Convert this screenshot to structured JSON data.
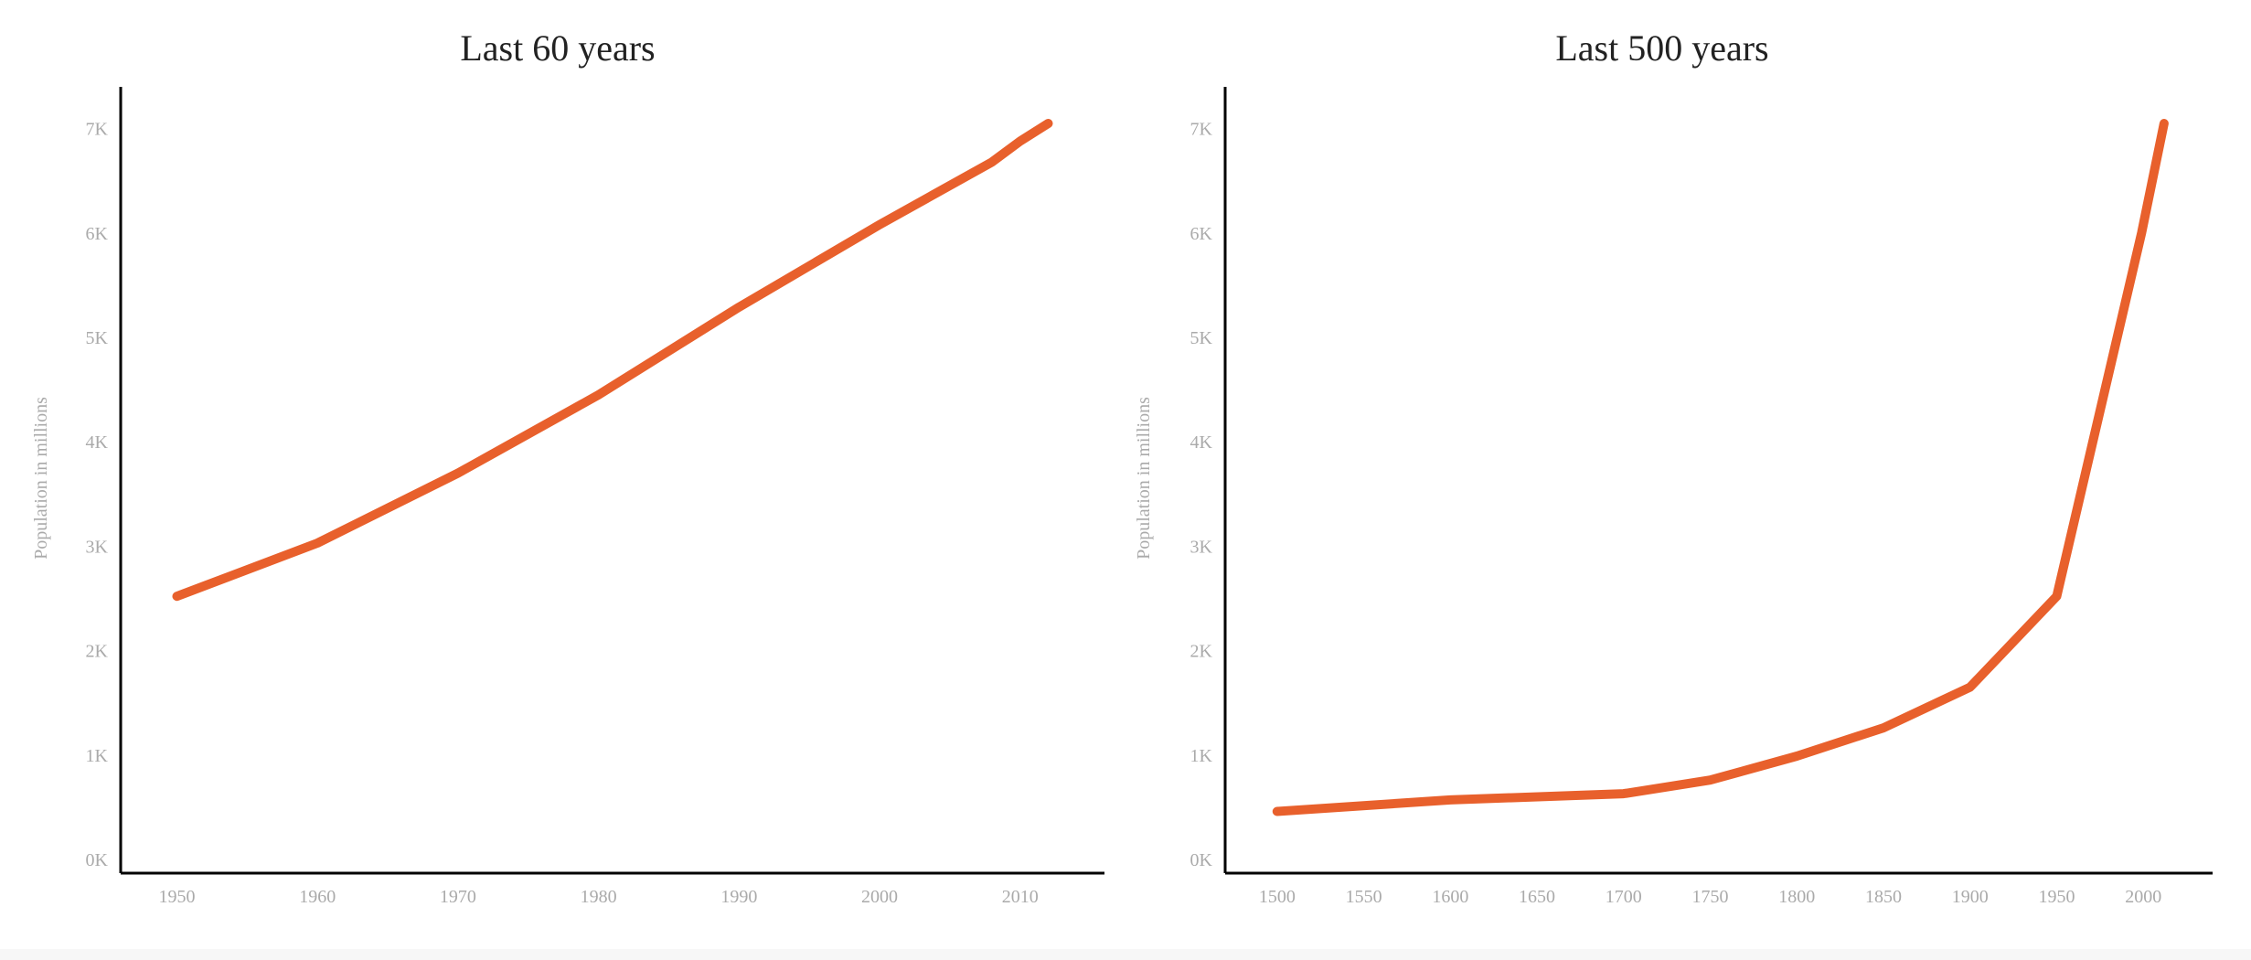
{
  "colors": {
    "line": "#E8602C",
    "axis": "#000000",
    "tick": "#aaaaaa",
    "title": "#222222"
  },
  "chart_data": [
    {
      "type": "line",
      "title": "Last 60 years",
      "ylabel": "Population in millions",
      "xlabel": "",
      "ylim": [
        0,
        7400
      ],
      "xlim": [
        1946,
        2016
      ],
      "yticks": [
        0,
        1000,
        2000,
        3000,
        4000,
        5000,
        6000,
        7000
      ],
      "yticklabels": [
        "0K",
        "1K",
        "2K",
        "3K",
        "4K",
        "5K",
        "6K",
        "7K"
      ],
      "xticks": [
        1950,
        1960,
        1970,
        1980,
        1990,
        2000,
        2010
      ],
      "xticklabels": [
        "1950",
        "1960",
        "1970",
        "1980",
        "1990",
        "2000",
        "2010"
      ],
      "grid": false,
      "series": [
        {
          "x": [
            1950,
            1960,
            1970,
            1980,
            1990,
            2000,
            2008,
            2010,
            2012
          ],
          "values": [
            2520,
            3030,
            3700,
            4450,
            5290,
            6080,
            6680,
            6880,
            7050
          ]
        }
      ]
    },
    {
      "type": "line",
      "title": "Last 500 years",
      "ylabel": "Population in millions",
      "xlabel": "",
      "ylim": [
        0,
        7400
      ],
      "xlim": [
        1470,
        2040
      ],
      "yticks": [
        0,
        1000,
        2000,
        3000,
        4000,
        5000,
        6000,
        7000
      ],
      "yticklabels": [
        "0K",
        "1K",
        "2K",
        "3K",
        "4K",
        "5K",
        "6K",
        "7K"
      ],
      "xticks": [
        1500,
        1550,
        1600,
        1650,
        1700,
        1750,
        1800,
        1850,
        1900,
        1950,
        2000
      ],
      "xticklabels": [
        "1500",
        "1550",
        "1600",
        "1650",
        "1700",
        "1750",
        "1800",
        "1850",
        "1900",
        "1950",
        "2000"
      ],
      "grid": false,
      "series": [
        {
          "x": [
            1500,
            1600,
            1700,
            1750,
            1800,
            1850,
            1900,
            1950,
            1999,
            2012
          ],
          "values": [
            460,
            570,
            630,
            760,
            990,
            1260,
            1650,
            2520,
            6000,
            7050
          ]
        }
      ]
    }
  ]
}
